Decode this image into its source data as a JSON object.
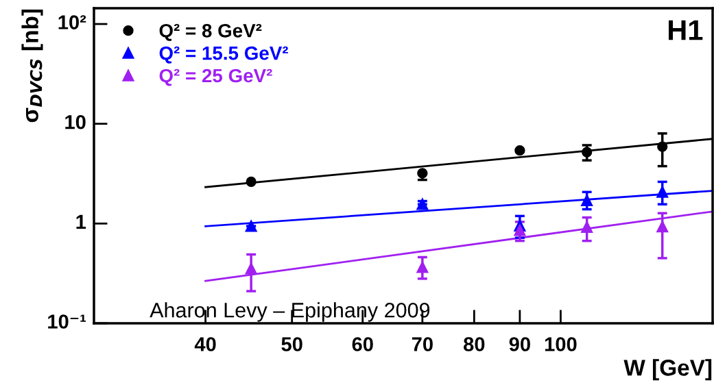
{
  "chart_data": {
    "type": "scatter",
    "xlabel": "W [GeV]",
    "ylabel": "σ$_{DVCS}$ [nb]",
    "log": "xy",
    "xlim": [
      30,
      148
    ],
    "ylim": [
      0.1,
      144
    ],
    "xticks": [
      40,
      50,
      60,
      70,
      80,
      90,
      100
    ],
    "yticks": [
      {
        "value": 0.1,
        "label": "10⁻¹"
      },
      1,
      10,
      {
        "value": 100,
        "label": "10²"
      }
    ],
    "grid": false,
    "legend": "top left",
    "annotations": [
      "H1",
      "Aharon Levy – Epiphany 2009"
    ],
    "series": [
      {
        "name": "Q² = 8 GeV²",
        "color": "#000000",
        "marker": "circle",
        "x": [
          45,
          70,
          90,
          107,
          130
        ],
        "values": [
          2.62,
          3.2,
          5.4,
          5.2,
          5.9
        ],
        "errors": [
          null,
          [
            2.74,
            3.2
          ],
          null,
          [
            4.3,
            6.1
          ],
          [
            3.76,
            8.0
          ]
        ]
      },
      {
        "name": "Q² = 15.5 GeV²",
        "color": "#0000ff",
        "marker": "triangle",
        "x": [
          45,
          70,
          90,
          107,
          130
        ],
        "values": [
          0.94,
          1.56,
          0.95,
          1.7,
          2.07
        ],
        "errors": [
          null,
          [
            1.56,
            1.68
          ],
          [
            0.72,
            1.19
          ],
          [
            1.39,
            2.07
          ],
          [
            1.56,
            2.62
          ]
        ]
      },
      {
        "name": "Q² = 25 GeV²",
        "color": "#a020f0",
        "marker": "triangle",
        "x": [
          45,
          70,
          90,
          107,
          130
        ],
        "values": [
          0.353,
          0.364,
          0.855,
          0.92,
          0.93
        ],
        "errors": [
          [
            0.21,
            0.49
          ],
          [
            0.28,
            0.46
          ],
          [
            0.67,
            1.04
          ],
          [
            0.67,
            1.15
          ],
          [
            0.45,
            1.27
          ]
        ]
      },
      {
        "type": "line",
        "color": "#000000",
        "x": [
          40,
          148
        ],
        "values": [
          2.32,
          7.06
        ]
      },
      {
        "type": "line",
        "color": "#0000ff",
        "x": [
          40,
          148
        ],
        "values": [
          0.94,
          2.13
        ]
      },
      {
        "type": "line",
        "color": "#a020f0",
        "x": [
          40,
          148
        ],
        "values": [
          0.266,
          1.32
        ]
      }
    ]
  }
}
